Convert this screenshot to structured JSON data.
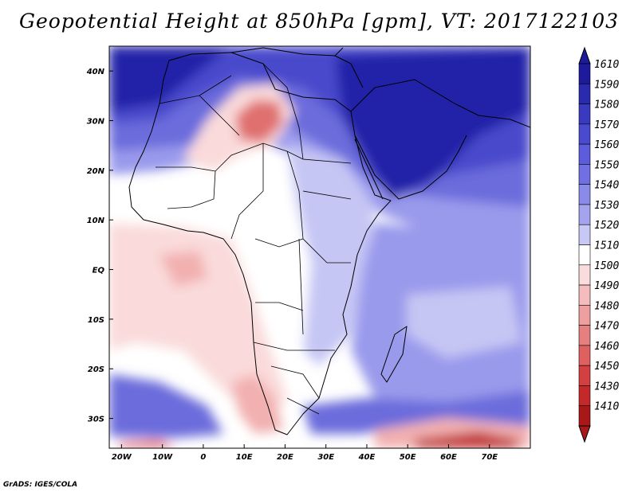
{
  "title": "Geopotential Height at 850hPa [gpm], VT: 2017122103",
  "credit": "GrADS: IGES/COLA",
  "map": {
    "lon_range": [
      -23,
      80
    ],
    "lat_range": [
      -36,
      45
    ],
    "x_ticks": [
      "20W",
      "10W",
      "0",
      "10E",
      "20E",
      "30E",
      "40E",
      "50E",
      "60E",
      "70E"
    ],
    "y_ticks": [
      "40N",
      "30N",
      "20N",
      "10N",
      "EQ",
      "10S",
      "20S",
      "30S"
    ]
  },
  "colorbar": {
    "levels": [
      "1610",
      "1590",
      "1580",
      "1570",
      "1560",
      "1550",
      "1540",
      "1530",
      "1520",
      "1510",
      "1500",
      "1490",
      "1480",
      "1470",
      "1460",
      "1450",
      "1430",
      "1410"
    ],
    "colors": [
      "#1e1a9c",
      "#2a2aae",
      "#3a3ac0",
      "#4a4ad0",
      "#5c5cdc",
      "#7070e2",
      "#8a8ae8",
      "#a4a4ee",
      "#c8c8f6",
      "#ffffff",
      "#fadcdc",
      "#f4bcbc",
      "#eea0a0",
      "#e68080",
      "#de6060",
      "#d44040",
      "#c42828",
      "#a81818"
    ]
  },
  "shading": {
    "background": "#ffffff",
    "colors": {
      "deep_blue": "#2222a8",
      "blue": "#4848cc",
      "mid_blue": "#6c6cdc",
      "light_blue": "#9a9aec",
      "pale_blue": "#c6c6f4",
      "pale_red": "#fadada",
      "light_red": "#f2b0b0",
      "red": "#e07070",
      "dark_red": "#c03030"
    }
  }
}
